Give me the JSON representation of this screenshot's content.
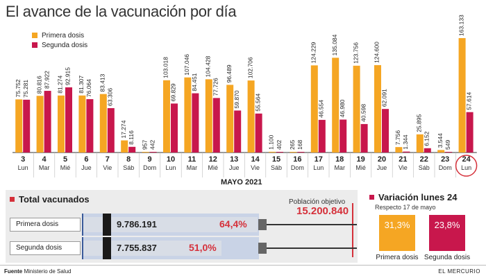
{
  "title": "El avance de la vacunación por día",
  "legend": {
    "first": "Primera dosis",
    "second": "Segunda dosis"
  },
  "colors": {
    "first": "#f5a623",
    "second": "#c8174c",
    "accent": "#d5303a"
  },
  "month_label": "MAYO 2021",
  "chart_data": {
    "type": "bar",
    "title": "El avance de la vacunación por día",
    "xlabel": "MAYO 2021",
    "categories": [
      "3",
      "4",
      "5",
      "6",
      "7",
      "8",
      "9",
      "10",
      "11",
      "12",
      "13",
      "14",
      "15",
      "16",
      "17",
      "18",
      "19",
      "20",
      "21",
      "22",
      "23",
      "24"
    ],
    "weekdays": [
      "Lun",
      "Mar",
      "Mié",
      "Jue",
      "Vie",
      "Sáb",
      "Dom",
      "Lun",
      "Mar",
      "Mié",
      "Jue",
      "Vie",
      "Sáb",
      "Dom",
      "Lun",
      "Mar",
      "Mié",
      "Jue",
      "Vie",
      "Sáb",
      "Dom",
      "Lun"
    ],
    "series": [
      {
        "name": "Primera dosis",
        "values": [
          75752,
          80816,
          81274,
          81307,
          83413,
          17274,
          957,
          103018,
          107046,
          104428,
          96489,
          102706,
          1100,
          265,
          124229,
          135084,
          123756,
          124600,
          7756,
          25895,
          3544,
          163133
        ],
        "labels": [
          "75.752",
          "80.816",
          "81.274",
          "81.307",
          "83.413",
          "17.274",
          "957",
          "103.018",
          "107.046",
          "104.428",
          "96.489",
          "102.706",
          "1.100",
          "265",
          "124.229",
          "135.084",
          "123.756",
          "124.600",
          "7.756",
          "25.895",
          "3.544",
          "163.133"
        ]
      },
      {
        "name": "Segunda dosis",
        "values": [
          75281,
          87922,
          92915,
          76064,
          63306,
          8116,
          442,
          69829,
          84451,
          77726,
          59870,
          55564,
          402,
          168,
          46554,
          46980,
          40598,
          62091,
          1344,
          6152,
          549,
          57614
        ],
        "labels": [
          "75.281",
          "87.922",
          "92.915",
          "76.064",
          "63.306",
          "8.116",
          "442",
          "69.829",
          "84.451",
          "77.726",
          "59.870",
          "55.564",
          "402",
          "168",
          "46.554",
          "46.980",
          "40.598",
          "62.091",
          "1.344",
          "6.152",
          "549",
          "57.614"
        ]
      }
    ],
    "ylim": [
      0,
      170000
    ],
    "highlighted_day": "24"
  },
  "total": {
    "title": "Total vacunados",
    "target_label": "Población objetivo",
    "target_value": "15.200.840",
    "rows": [
      {
        "label": "Primera dosis",
        "value": "9.786.191",
        "pct": "64,4%",
        "fraction": 0.644
      },
      {
        "label": "Segunda dosis",
        "value": "7.755.837",
        "pct": "51,0%",
        "fraction": 0.51
      }
    ]
  },
  "variation": {
    "title": "Variación lunes 24",
    "subtitle": "Respecto 17 de mayo",
    "items": [
      {
        "label": "Primera dosis",
        "value": "31,3%"
      },
      {
        "label": "Segunda dosis",
        "value": "23,8%"
      }
    ]
  },
  "footer": {
    "source_bold": "Fuente",
    "source": "Ministerio de Salud",
    "brand": "EL MERCURIO"
  }
}
